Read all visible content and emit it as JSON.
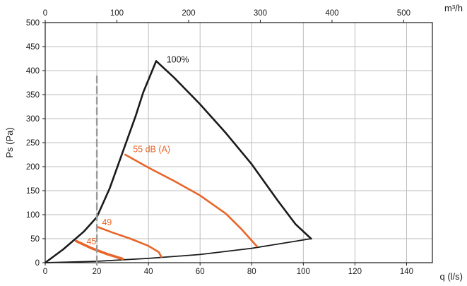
{
  "chart_data": {
    "type": "line",
    "title": "",
    "xlabel": "q (l/s)",
    "ylabel": "Ps (Pa)",
    "x2label": "m³/h",
    "xlim": [
      0,
      150
    ],
    "ylim": [
      0,
      500
    ],
    "x2lim": [
      0,
      540
    ],
    "x_ticks": [
      0,
      20,
      40,
      60,
      80,
      100,
      120,
      140
    ],
    "y_ticks": [
      0,
      50,
      100,
      150,
      200,
      250,
      300,
      350,
      400,
      450,
      500
    ],
    "x2_ticks": [
      0,
      100,
      200,
      300,
      400,
      500
    ],
    "grid": true,
    "colors": {
      "envelope": "#1a1a1a",
      "sound": "#e8652a",
      "limit": "#9a9a9a",
      "grid": "#bdbdbd"
    },
    "series": [
      {
        "name": "100%",
        "role": "envelope",
        "x": [
          0,
          7,
          15,
          20,
          25,
          30,
          35,
          38,
          43,
          50,
          60,
          70,
          80,
          90,
          97,
          103
        ],
        "y": [
          0,
          28,
          65,
          95,
          155,
          230,
          305,
          355,
          420,
          385,
          330,
          270,
          205,
          130,
          80,
          50
        ]
      },
      {
        "name": "",
        "role": "system",
        "x": [
          0,
          20,
          40,
          60,
          80,
          103
        ],
        "y": [
          0,
          3,
          9,
          17,
          30,
          50
        ]
      },
      {
        "name": "55 dB (A)",
        "role": "sound",
        "x": [
          31,
          40,
          50,
          60,
          70,
          76,
          82
        ],
        "y": [
          225,
          198,
          170,
          140,
          102,
          70,
          34
        ]
      },
      {
        "name": "49",
        "role": "sound",
        "x": [
          20,
          26,
          33,
          40,
          44,
          45
        ],
        "y": [
          75,
          63,
          50,
          35,
          22,
          12
        ]
      },
      {
        "name": "45",
        "role": "sound",
        "x": [
          12,
          18,
          24,
          30
        ],
        "y": [
          45,
          30,
          18,
          8
        ]
      },
      {
        "name": "",
        "role": "limit",
        "x": [
          20,
          20
        ],
        "y": [
          0,
          390
        ]
      }
    ],
    "annotations": [
      {
        "text": "100%",
        "x": 47,
        "y": 417,
        "color": "black"
      },
      {
        "text": "55 dB (A)",
        "x": 34,
        "y": 230,
        "color": "orange"
      },
      {
        "text": "49",
        "x": 22,
        "y": 78,
        "color": "orange"
      },
      {
        "text": "45",
        "x": 16,
        "y": 38,
        "color": "orange"
      }
    ]
  }
}
